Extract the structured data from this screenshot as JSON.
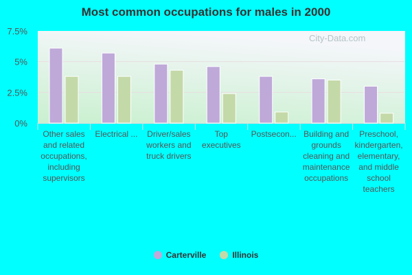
{
  "chart_data": {
    "type": "bar",
    "title": "Most common occupations for males in 2000",
    "categories": [
      "Other sales and related occupations, including supervisors",
      "Electrical ...",
      "Driver/sales workers and truck drivers",
      "Top executives",
      "Postsecon...",
      "Building and grounds cleaning and maintenance occupations",
      "Preschool, kindergarten, elementary, and middle school teachers"
    ],
    "series": [
      {
        "name": "Carterville",
        "color": "#bea9d9",
        "values": [
          6.1,
          5.7,
          4.8,
          4.6,
          3.8,
          3.6,
          3.0
        ]
      },
      {
        "name": "Illinois",
        "color": "#c4d9a8",
        "values": [
          3.8,
          3.8,
          4.3,
          2.4,
          0.9,
          3.5,
          0.8
        ]
      }
    ],
    "yticks": [
      "0%",
      "2.5%",
      "5%",
      "7.5%"
    ],
    "ytick_values": [
      0,
      2.5,
      5,
      7.5
    ],
    "ylim": [
      0,
      7.5
    ],
    "legend": "bottom",
    "watermark": "City-Data.com"
  }
}
